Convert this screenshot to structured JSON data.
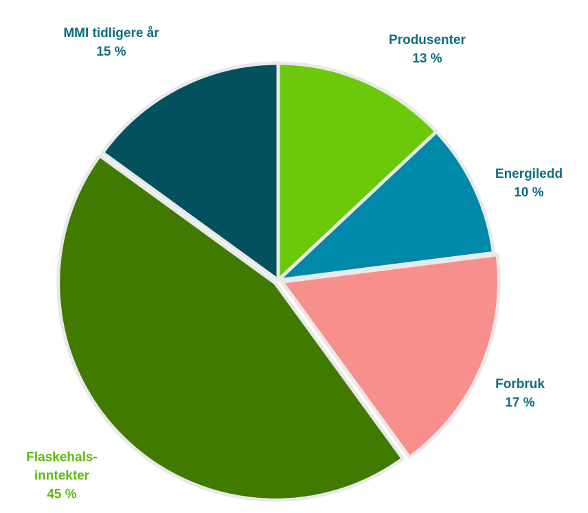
{
  "chart_data": {
    "type": "pie",
    "categories": [
      "Produsenter",
      "Energiledd",
      "Forbruk",
      "Flaskehals-inntekter",
      "MMI tidligere år"
    ],
    "values": [
      13,
      10,
      17,
      45,
      15
    ],
    "value_labels": [
      "13 %",
      "10 %",
      "17 %",
      "45 %",
      "15 %"
    ],
    "colors": [
      "#6cc909",
      "#0089a8",
      "#f7908c",
      "#417a00",
      "#03505f"
    ],
    "label_colors": [
      "#0e6e80",
      "#0e6e80",
      "#0e6e80",
      "#5cbd0a",
      "#0e6e80"
    ]
  }
}
